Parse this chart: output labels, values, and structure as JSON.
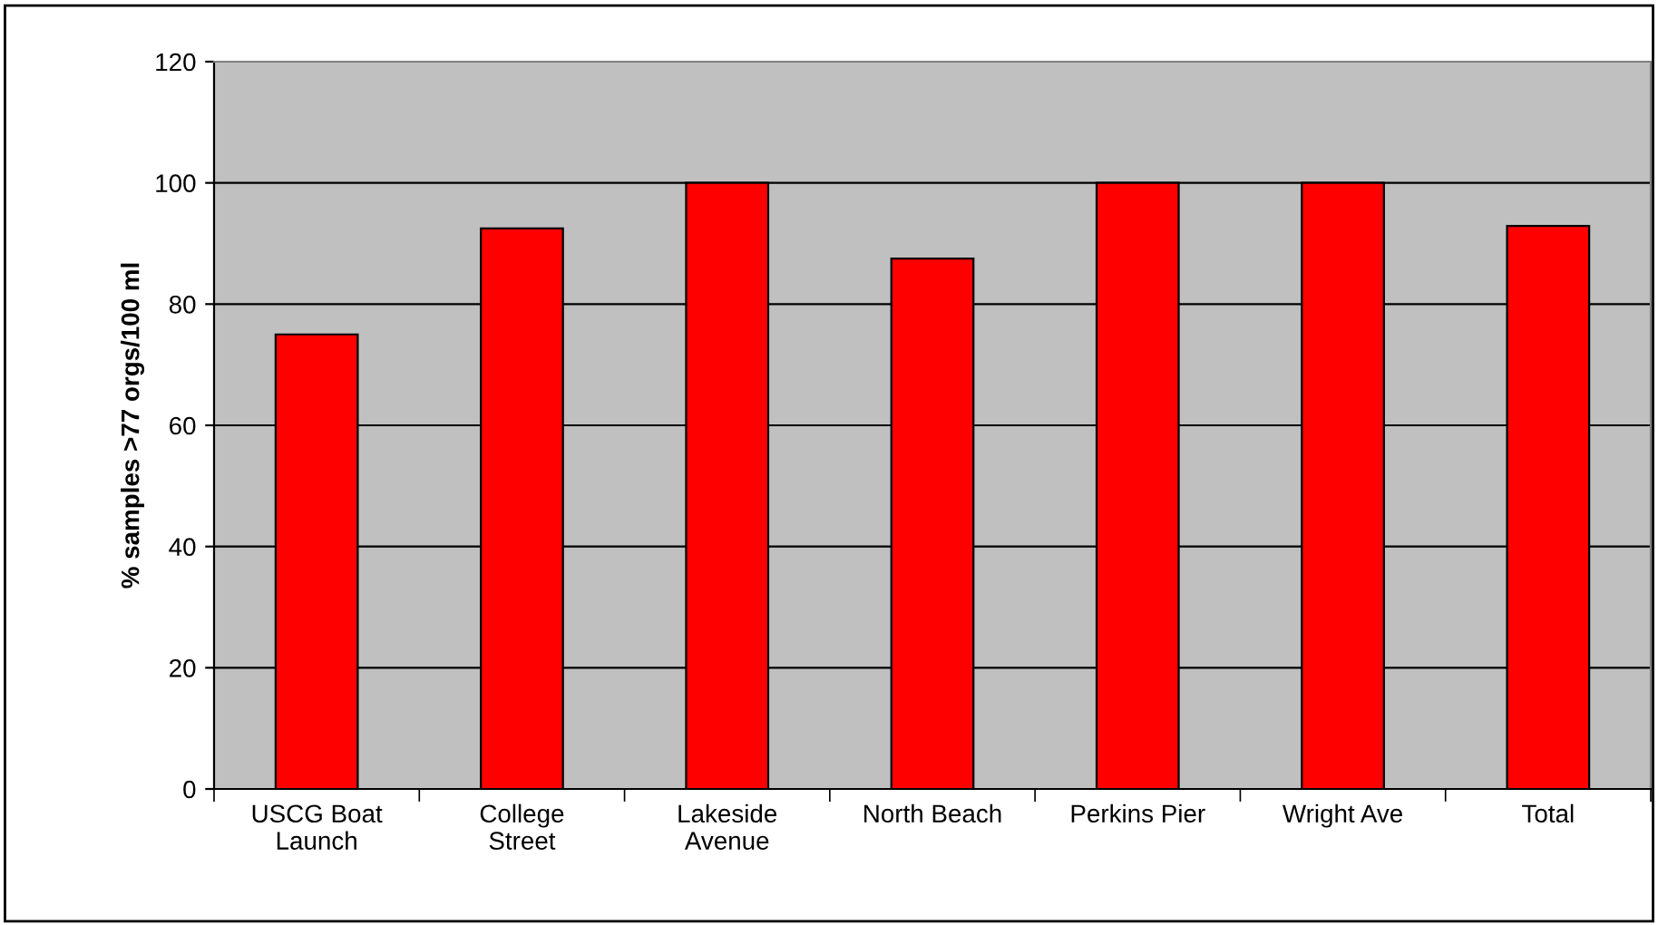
{
  "chart_data": {
    "type": "bar",
    "ylabel": "% samples >77 orgs/100 ml",
    "categories": [
      "USCG Boat\nLaunch",
      "College\nStreet",
      "Lakeside\nAvenue",
      "North Beach",
      "Perkins Pier",
      "Wright Ave",
      "Total"
    ],
    "values": [
      75,
      92.5,
      100,
      87.5,
      100,
      100,
      92.9
    ],
    "color": "#ff0000",
    "ylim": [
      0,
      120
    ],
    "yticks": [
      0,
      20,
      40,
      60,
      80,
      100,
      120
    ],
    "grid": "y"
  }
}
